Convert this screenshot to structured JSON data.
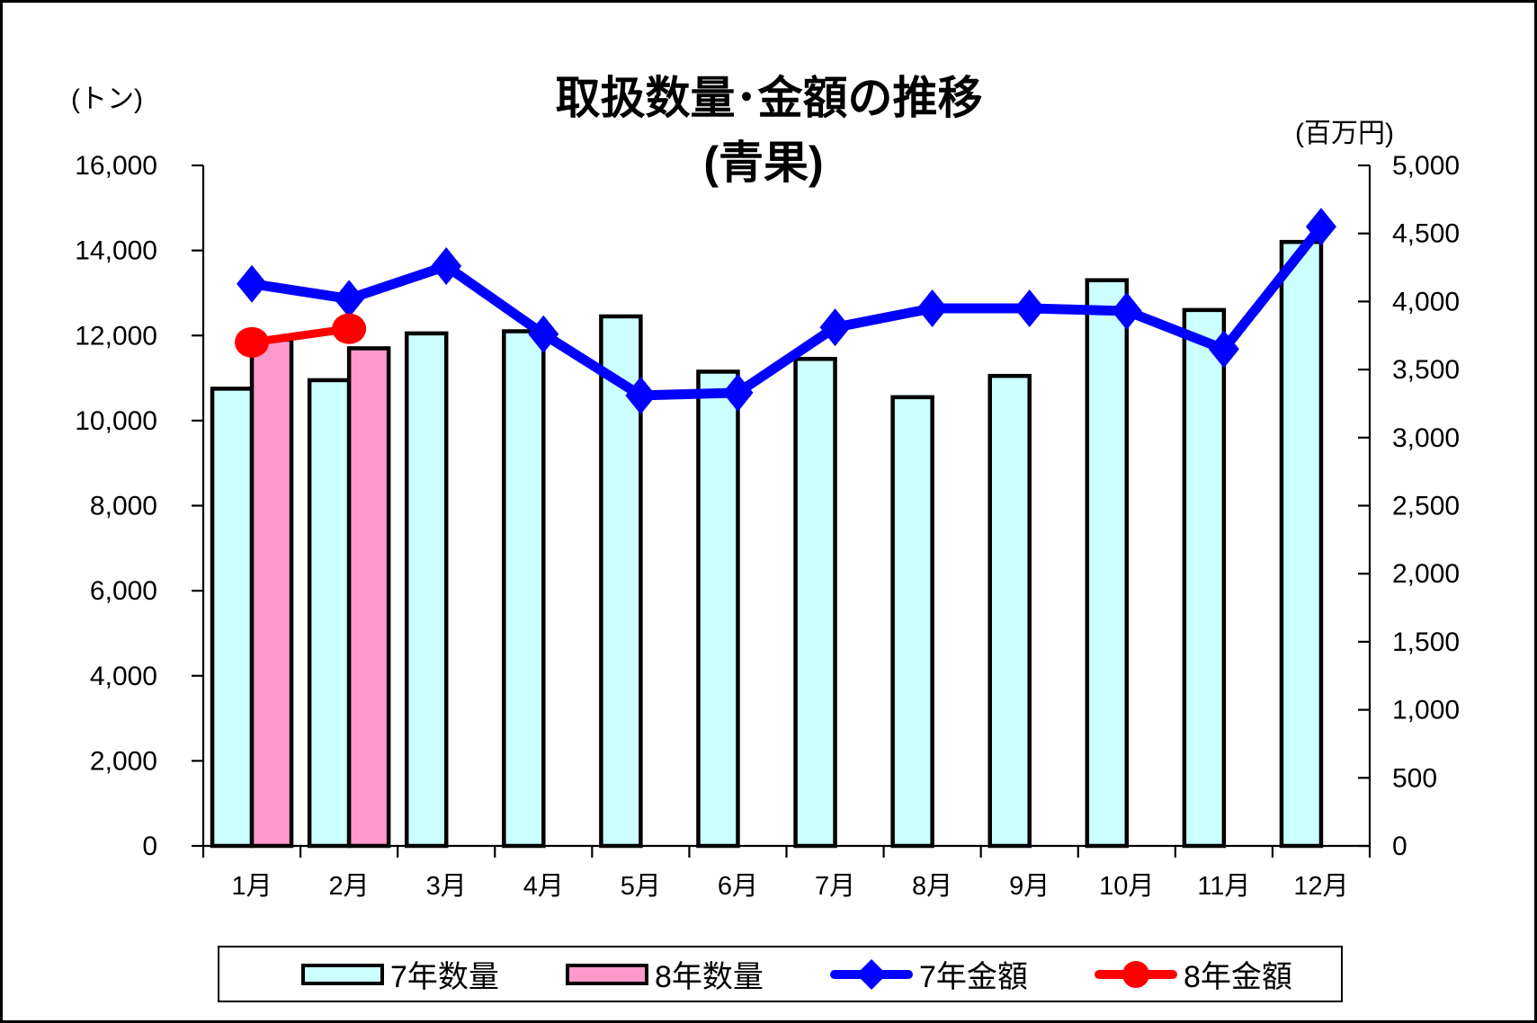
{
  "chart_data": {
    "type": "bar+line",
    "title": "取扱数量･金額の推移",
    "subtitle": "(青果)",
    "categories": [
      "1月",
      "2月",
      "3月",
      "4月",
      "5月",
      "6月",
      "7月",
      "8月",
      "9月",
      "10月",
      "11月",
      "12月"
    ],
    "left_axis": {
      "unit_label": "(トン)",
      "min": 0,
      "max": 16000,
      "step": 2000,
      "tick_labels": [
        "0",
        "2,000",
        "4,000",
        "6,000",
        "8,000",
        "10,000",
        "12,000",
        "14,000",
        "16,000"
      ]
    },
    "right_axis": {
      "unit_label": "(百万円)",
      "min": 0,
      "max": 5000,
      "step": 500,
      "tick_labels": [
        "0",
        "500",
        "1,000",
        "1,500",
        "2,000",
        "2,500",
        "3,000",
        "3,500",
        "4,000",
        "4,500",
        "5,000"
      ]
    },
    "series": [
      {
        "name": "7年数量",
        "type": "bar",
        "axis": "left",
        "color": "#CCFFFF",
        "border_color": "#000000",
        "values": [
          10750,
          10950,
          12050,
          12100,
          12450,
          11150,
          11450,
          10550,
          11050,
          13300,
          12600,
          14200
        ]
      },
      {
        "name": "8年数量",
        "type": "bar",
        "axis": "left",
        "color": "#FF99CC",
        "border_color": "#000000",
        "values": [
          11900,
          11700,
          null,
          null,
          null,
          null,
          null,
          null,
          null,
          null,
          null,
          null
        ]
      },
      {
        "name": "7年金額",
        "type": "line",
        "axis": "right",
        "color": "#0000FF",
        "marker": "diamond",
        "values": [
          4130,
          4020,
          4260,
          3760,
          3310,
          3330,
          3810,
          3950,
          3950,
          3930,
          3650,
          4550
        ]
      },
      {
        "name": "8年金額",
        "type": "line",
        "axis": "right",
        "color": "#FF0000",
        "marker": "circle",
        "values": [
          3700,
          3800,
          null,
          null,
          null,
          null,
          null,
          null,
          null,
          null,
          null,
          null
        ]
      }
    ],
    "legend": {
      "position": "bottom",
      "items": [
        "7年数量",
        "8年数量",
        "7年金額",
        "8年金額"
      ]
    },
    "grid": false,
    "background": "#FFFFFF",
    "frame_color": "#000000"
  }
}
